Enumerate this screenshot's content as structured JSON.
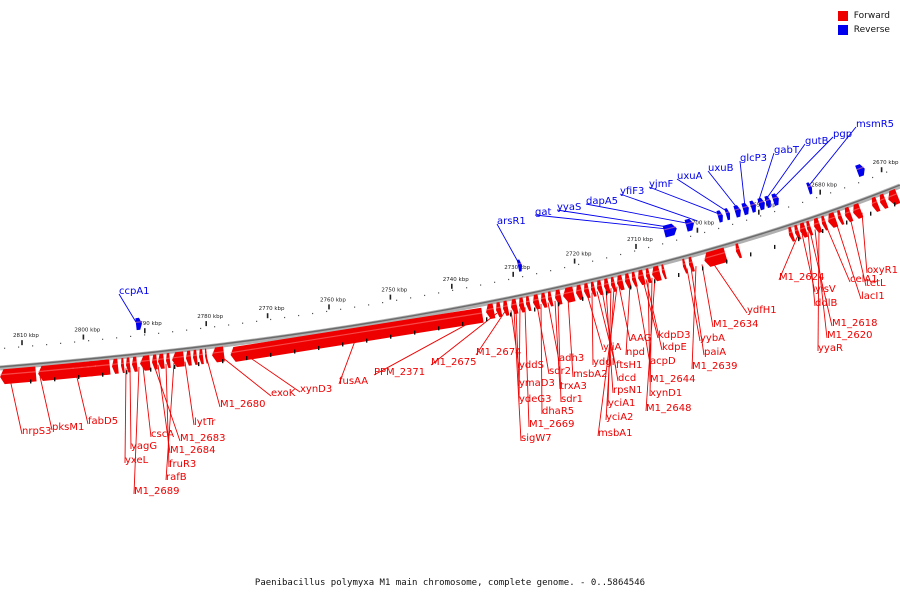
{
  "caption": "Paenibacillus polymyxa M1 main chromosome, complete genome. - 0..5864546",
  "legend": {
    "forward": {
      "label": "Forward",
      "color": "#ee0000"
    },
    "reverse": {
      "label": "Reverse",
      "color": "#0000ee"
    }
  },
  "colors": {
    "forward_gene": "#ee0000",
    "reverse_gene": "#0000ee",
    "backbone": "#888888"
  },
  "ticks": [
    {
      "kbp": 2810,
      "label": "2810 kbp"
    },
    {
      "kbp": 2800,
      "label": "2800 kbp"
    },
    {
      "kbp": 2790,
      "label": "2790 kbp"
    },
    {
      "kbp": 2780,
      "label": "2780 kbp"
    },
    {
      "kbp": 2770,
      "label": "2770 kbp"
    },
    {
      "kbp": 2760,
      "label": "2760 kbp"
    },
    {
      "kbp": 2750,
      "label": "2750 kbp"
    },
    {
      "kbp": 2740,
      "label": "2740 kbp"
    },
    {
      "kbp": 2730,
      "label": "2730 kbp"
    },
    {
      "kbp": 2720,
      "label": "2720 kbp"
    },
    {
      "kbp": 2710,
      "label": "2710 kbp"
    },
    {
      "kbp": 2700,
      "label": "2700 kbp"
    },
    {
      "kbp": 2690,
      "label": "2690 kbp"
    },
    {
      "kbp": 2680,
      "label": "2680 kbp"
    },
    {
      "kbp": 2670,
      "label": "2670 kbp"
    }
  ],
  "forward_genes": [
    "nrpS3",
    "pksM1",
    "fabD5",
    "yagG",
    "yxeL",
    "cscA",
    "M1_2683",
    "M1_2684",
    "fruR3",
    "rafB",
    "M1_2689",
    "lytTr",
    "M1_2680",
    "exoK",
    "xynD3",
    "fusAA",
    "PPM_2371",
    "M1_2675",
    "M1_2674",
    "yddS",
    "ymaD3",
    "ydeG3",
    "M1_2669",
    "sigW7",
    "sdr2",
    "dhaR5",
    "adh3",
    "trxA3",
    "sdr1",
    "msbA2",
    "yjiA",
    "ydgI",
    "ftsH1",
    "dcd",
    "rpsN1",
    "yciA1",
    "yciA2",
    "msbA1",
    "AAG",
    "npd",
    "acpD",
    "kdpD3",
    "kdpE",
    "M1_2644",
    "xynD1",
    "M1_2648",
    "yybA",
    "paiA",
    "M1_2639",
    "M1_2634",
    "ydfH1",
    "M1_2624",
    "yisV",
    "ddlB",
    "M1_2618",
    "M1_2620",
    "yyaR",
    "celA1",
    "lacI1",
    "tetL",
    "oxyR1"
  ],
  "reverse_genes": [
    "ccpA1",
    "arsR1",
    "gat",
    "yyaS",
    "dapA5",
    "yfiF3",
    "yjmF",
    "uxuA",
    "uxuB",
    "glcP3",
    "gabT",
    "gutB",
    "pgp",
    "msmR5"
  ]
}
